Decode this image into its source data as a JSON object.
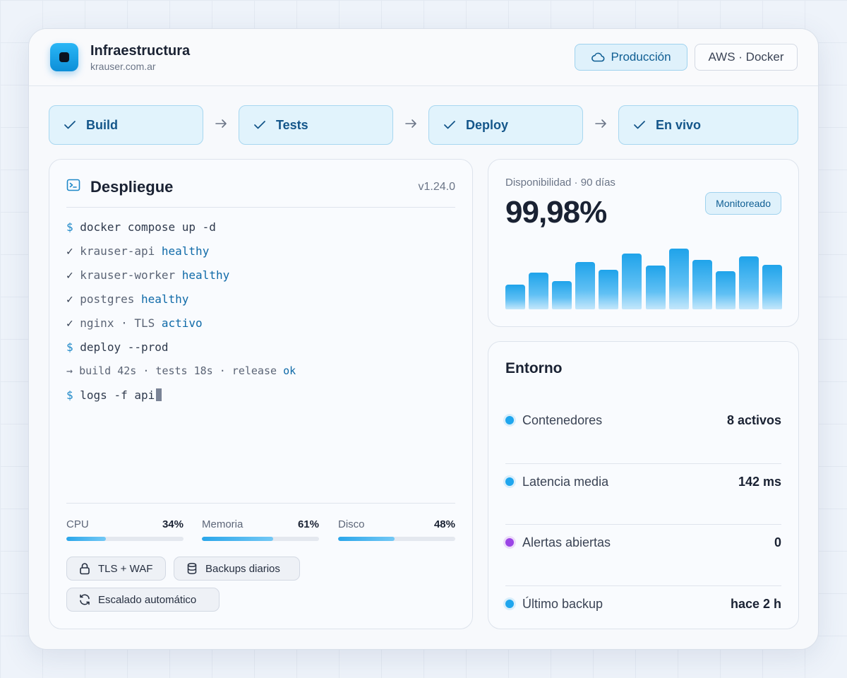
{
  "header": {
    "app_title": "Infraestructura",
    "app_domain": "krauser.com.ar",
    "env_badge": "Producción",
    "stack_badge": "AWS · Docker"
  },
  "pipeline": {
    "steps": [
      {
        "label": "Build",
        "status": "done"
      },
      {
        "label": "Tests",
        "status": "done"
      },
      {
        "label": "Deploy",
        "status": "done"
      },
      {
        "label": "En vivo",
        "status": "done"
      }
    ]
  },
  "deploy": {
    "title": "Despliegue",
    "version": "v1.24.0",
    "terminal": [
      {
        "prefix": "$",
        "text": "docker compose up -d",
        "status": ""
      },
      {
        "prefix": "✓",
        "text": "krauser-api",
        "status": "healthy"
      },
      {
        "prefix": "✓",
        "text": "krauser-worker",
        "status": "healthy"
      },
      {
        "prefix": "✓",
        "text": "postgres",
        "status": "healthy"
      },
      {
        "prefix": "✓",
        "text": "nginx · TLS",
        "status": "activo"
      },
      {
        "prefix": "$",
        "text": "deploy --prod",
        "status": ""
      },
      {
        "prefix": "→",
        "text": "build 42s · tests 18s · release",
        "status": "ok"
      },
      {
        "prefix": "$",
        "text": "logs -f api",
        "status": ""
      }
    ],
    "meters": [
      {
        "label": "CPU",
        "value": "34%",
        "fraction": 0.34
      },
      {
        "label": "Memoria",
        "value": "61%",
        "fraction": 0.61
      },
      {
        "label": "Disco",
        "value": "48%",
        "fraction": 0.48
      }
    ],
    "chips": [
      {
        "label": "TLS + WAF",
        "icon": "lock-icon"
      },
      {
        "label": "Backups diarios",
        "icon": "database-icon"
      },
      {
        "label": "Escalado automático",
        "icon": "refresh-icon"
      }
    ]
  },
  "availability": {
    "label": "Disponibilidad · 90 días",
    "value": "99,98%",
    "badge": "Monitoreado",
    "bars": [
      0.38,
      0.57,
      0.44,
      0.73,
      0.61,
      0.86,
      0.67,
      0.94,
      0.76,
      0.59,
      0.82,
      0.69
    ]
  },
  "environment": {
    "title": "Entorno",
    "rows": [
      {
        "label": "Contenedores",
        "value": "8 activos",
        "color": "#1fa6ee"
      },
      {
        "label": "Latencia media",
        "value": "142 ms",
        "color": "#1fa6ee"
      },
      {
        "label": "Alertas abiertas",
        "value": "0",
        "color": "#9b45e6"
      },
      {
        "label": "Último backup",
        "value": "hace 2 h",
        "color": "#1fa6ee"
      }
    ]
  },
  "colors": {
    "accent": "#1fa6ee",
    "accent_dark": "#0f5e93",
    "alert": "#9b45e6"
  }
}
